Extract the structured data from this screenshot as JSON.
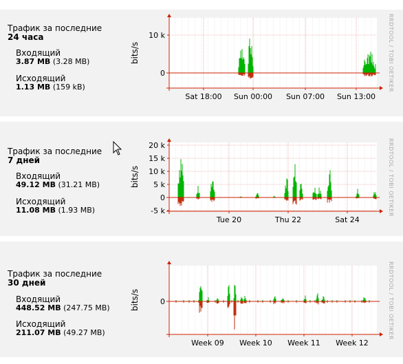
{
  "common": {
    "title_prefix": "Трафик за последние",
    "incoming_label": "Входящий",
    "outgoing_label": "Исходящий",
    "yaxis_label": "bits/s",
    "watermark": "RRDTOOL / TOBI OETIKER"
  },
  "panels": [
    {
      "period": "24 часа",
      "incoming": {
        "total": "3.87 MB",
        "paren": "(3.28 MB)"
      },
      "outgoing": {
        "total": "1.13 MB",
        "paren": "(159 kB)"
      },
      "y_ticks": [
        "10 k",
        "0"
      ],
      "x_ticks": [
        "Sat 18:00",
        "Sun 00:00",
        "Sun 07:00",
        "Sun 13:00"
      ]
    },
    {
      "period": "7 дней",
      "incoming": {
        "total": "49.12 MB",
        "paren": "(31.21 MB)"
      },
      "outgoing": {
        "total": "11.08 MB",
        "paren": "(1.93 MB)"
      },
      "y_ticks": [
        "20 k",
        "15 k",
        "10 k",
        "5 k",
        "0",
        "-5 k"
      ],
      "x_ticks": [
        "Tue 20",
        "Thu 22",
        "Sat 24"
      ]
    },
    {
      "period": "30 дней",
      "incoming": {
        "total": "448.52 MB",
        "paren": "(247.75 MB)"
      },
      "outgoing": {
        "total": "211.07 MB",
        "paren": "(49.27 MB)"
      },
      "y_ticks": [
        "0"
      ],
      "x_ticks": [
        "Week 09",
        "Week 10",
        "Week 11",
        "Week 12"
      ]
    }
  ],
  "colors": {
    "incoming": "#00b400",
    "outgoing": "#c03010",
    "axis": "#cc2200",
    "grid": "#e08080"
  }
}
